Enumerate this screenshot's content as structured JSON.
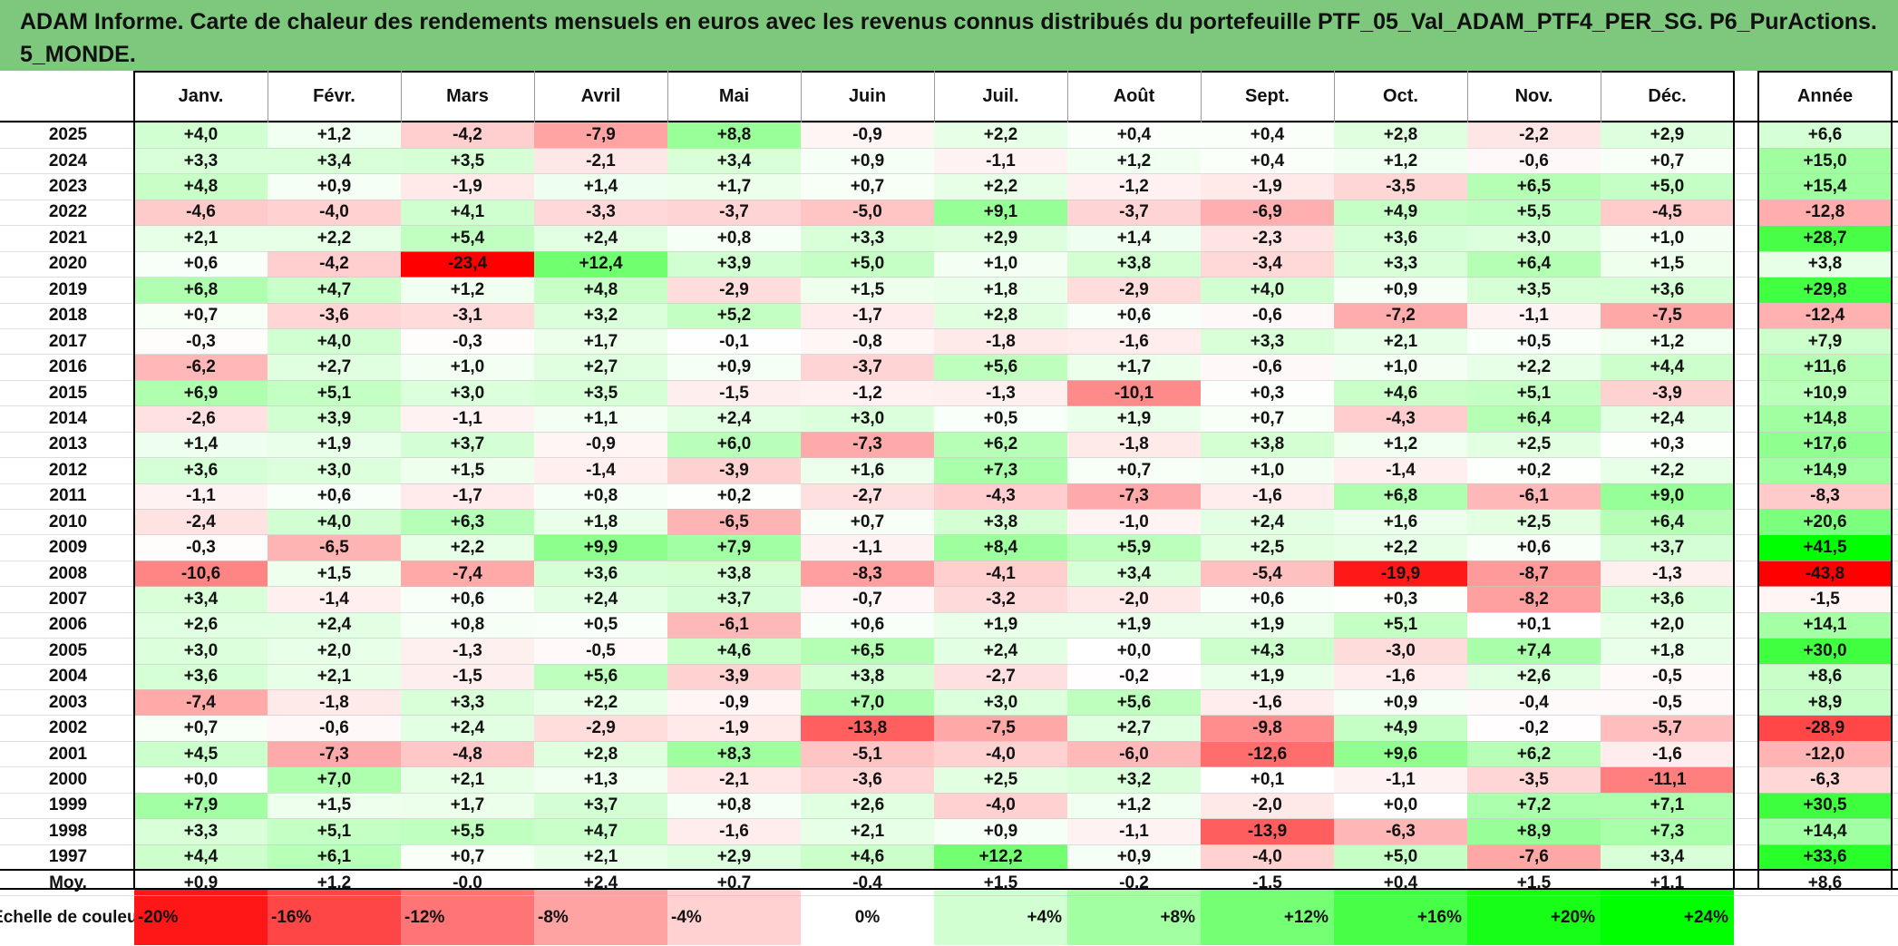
{
  "title": "ADAM Informe. Carte de chaleur des rendements mensuels en euros avec les revenus connus distribués du portefeuille PTF_05_Val_ADAM_PTF4_PER_SG. P6_PurActions. 5_MONDE.",
  "colors": {
    "title_bg": "#7ec87e",
    "negative_max": "#ff0000",
    "positive_max": "#00ff00",
    "neutral": "#ffffff"
  },
  "chart_data": {
    "type": "heatmap",
    "title": "ADAM Informe. Carte de chaleur des rendements mensuels en euros avec les revenus connus distribués du portefeuille PTF_05_Val_ADAM_PTF4_PER_SG. P6_PurActions. 5_MONDE.",
    "months": [
      "Janv.",
      "Févr.",
      "Mars",
      "Avril",
      "Mai",
      "Juin",
      "Juil.",
      "Août",
      "Sept.",
      "Oct.",
      "Nov.",
      "Déc."
    ],
    "annual_label": "Année",
    "years": [
      "2025",
      "2024",
      "2023",
      "2022",
      "2021",
      "2020",
      "2019",
      "2018",
      "2017",
      "2016",
      "2015",
      "2014",
      "2013",
      "2012",
      "2011",
      "2010",
      "2009",
      "2008",
      "2007",
      "2006",
      "2005",
      "2004",
      "2003",
      "2002",
      "2001",
      "2000",
      "1999",
      "1998",
      "1997"
    ],
    "values": [
      [
        "+4,0",
        "+1,2",
        "-4,2",
        "-7,9",
        "+8,8",
        "-0,9",
        "+2,2",
        "+0,4",
        "+0,4",
        "+2,8",
        "-2,2",
        "+2,9"
      ],
      [
        "+3,3",
        "+3,4",
        "+3,5",
        "-2,1",
        "+3,4",
        "+0,9",
        "-1,1",
        "+1,2",
        "+0,4",
        "+1,2",
        "-0,6",
        "+0,7"
      ],
      [
        "+4,8",
        "+0,9",
        "-1,9",
        "+1,4",
        "+1,7",
        "+0,7",
        "+2,2",
        "-1,2",
        "-1,9",
        "-3,5",
        "+6,5",
        "+5,0"
      ],
      [
        "-4,6",
        "-4,0",
        "+4,1",
        "-3,3",
        "-3,7",
        "-5,0",
        "+9,1",
        "-3,7",
        "-6,9",
        "+4,9",
        "+5,5",
        "-4,5"
      ],
      [
        "+2,1",
        "+2,2",
        "+5,4",
        "+2,4",
        "+0,8",
        "+3,3",
        "+2,9",
        "+1,4",
        "-2,3",
        "+3,6",
        "+3,0",
        "+1,0"
      ],
      [
        "+0,6",
        "-4,2",
        "-23,4",
        "+12,4",
        "+3,9",
        "+5,0",
        "+1,0",
        "+3,8",
        "-3,4",
        "+3,3",
        "+6,4",
        "+1,5"
      ],
      [
        "+6,8",
        "+4,7",
        "+1,2",
        "+4,8",
        "-2,9",
        "+1,5",
        "+1,8",
        "-2,9",
        "+4,0",
        "+0,9",
        "+3,5",
        "+3,6"
      ],
      [
        "+0,7",
        "-3,6",
        "-3,1",
        "+3,2",
        "+5,2",
        "-1,7",
        "+2,8",
        "+0,6",
        "-0,6",
        "-7,2",
        "-1,1",
        "-7,5"
      ],
      [
        "-0,3",
        "+4,0",
        "-0,3",
        "+1,7",
        "-0,1",
        "-0,8",
        "-1,8",
        "-1,6",
        "+3,3",
        "+2,1",
        "+0,5",
        "+1,2"
      ],
      [
        "-6,2",
        "+2,7",
        "+1,0",
        "+2,7",
        "+0,9",
        "-3,7",
        "+5,6",
        "+1,7",
        "-0,6",
        "+1,0",
        "+2,2",
        "+4,4"
      ],
      [
        "+6,9",
        "+5,1",
        "+3,0",
        "+3,5",
        "-1,5",
        "-1,2",
        "-1,3",
        "-10,1",
        "+0,3",
        "+4,6",
        "+5,1",
        "-3,9"
      ],
      [
        "-2,6",
        "+3,9",
        "-1,1",
        "+1,1",
        "+2,4",
        "+3,0",
        "+0,5",
        "+1,9",
        "+0,7",
        "-4,3",
        "+6,4",
        "+2,4"
      ],
      [
        "+1,4",
        "+1,9",
        "+3,7",
        "-0,9",
        "+6,0",
        "-7,3",
        "+6,2",
        "-1,8",
        "+3,8",
        "+1,2",
        "+2,5",
        "+0,3"
      ],
      [
        "+3,6",
        "+3,0",
        "+1,5",
        "-1,4",
        "-3,9",
        "+1,6",
        "+7,3",
        "+0,7",
        "+1,0",
        "-1,4",
        "+0,2",
        "+2,2"
      ],
      [
        "-1,1",
        "+0,6",
        "-1,7",
        "+0,8",
        "+0,2",
        "-2,7",
        "-4,3",
        "-7,3",
        "-1,6",
        "+6,8",
        "-6,1",
        "+9,0"
      ],
      [
        "-2,4",
        "+4,0",
        "+6,3",
        "+1,8",
        "-6,5",
        "+0,7",
        "+3,8",
        "-1,0",
        "+2,4",
        "+1,6",
        "+2,5",
        "+6,4"
      ],
      [
        "-0,3",
        "-6,5",
        "+2,2",
        "+9,9",
        "+7,9",
        "-1,1",
        "+8,4",
        "+5,9",
        "+2,5",
        "+2,2",
        "+0,6",
        "+3,7"
      ],
      [
        "-10,6",
        "+1,5",
        "-7,4",
        "+3,6",
        "+3,8",
        "-8,3",
        "-4,1",
        "+3,4",
        "-5,4",
        "-19,9",
        "-8,7",
        "-1,3"
      ],
      [
        "+3,4",
        "-1,4",
        "+0,6",
        "+2,4",
        "+3,7",
        "-0,7",
        "-3,2",
        "-2,0",
        "+0,6",
        "+0,3",
        "-8,2",
        "+3,6"
      ],
      [
        "+2,6",
        "+2,4",
        "+0,8",
        "+0,5",
        "-6,1",
        "+0,6",
        "+1,9",
        "+1,9",
        "+1,9",
        "+5,1",
        "+0,1",
        "+2,0"
      ],
      [
        "+3,0",
        "+2,0",
        "-1,3",
        "-0,5",
        "+4,6",
        "+6,5",
        "+2,4",
        "+0,0",
        "+4,3",
        "-3,0",
        "+7,4",
        "+1,8"
      ],
      [
        "+3,6",
        "+2,1",
        "-1,5",
        "+5,6",
        "-3,9",
        "+3,8",
        "-2,7",
        "-0,2",
        "+1,9",
        "-1,6",
        "+2,6",
        "-0,5"
      ],
      [
        "-7,4",
        "-1,8",
        "+3,3",
        "+2,2",
        "-0,9",
        "+7,0",
        "+3,0",
        "+5,6",
        "-1,6",
        "+0,9",
        "-0,4",
        "-0,5"
      ],
      [
        "+0,7",
        "-0,6",
        "+2,4",
        "-2,9",
        "-1,9",
        "-13,8",
        "-7,5",
        "+2,7",
        "-9,8",
        "+4,9",
        "-0,2",
        "-5,7"
      ],
      [
        "+4,5",
        "-7,3",
        "-4,8",
        "+2,8",
        "+8,3",
        "-5,1",
        "-4,0",
        "-6,0",
        "-12,6",
        "+9,6",
        "+6,2",
        "-1,6"
      ],
      [
        "+0,0",
        "+7,0",
        "+2,1",
        "+1,3",
        "-2,1",
        "-3,6",
        "+2,5",
        "+3,2",
        "+0,1",
        "-1,1",
        "-3,5",
        "-11,1"
      ],
      [
        "+7,9",
        "+1,5",
        "+1,7",
        "+3,7",
        "+0,8",
        "+2,6",
        "-4,0",
        "+1,2",
        "-2,0",
        "+0,0",
        "+7,2",
        "+7,1"
      ],
      [
        "+3,3",
        "+5,1",
        "+5,5",
        "+4,7",
        "-1,6",
        "+2,1",
        "+0,9",
        "-1,1",
        "-13,9",
        "-6,3",
        "+8,9",
        "+7,3"
      ],
      [
        "+4,4",
        "+6,1",
        "+0,7",
        "+2,1",
        "+2,9",
        "+4,6",
        "+12,2",
        "+0,9",
        "-4,0",
        "+5,0",
        "-7,6",
        "+3,4"
      ]
    ],
    "annual": [
      "+6,6",
      "+15,0",
      "+15,4",
      "-12,8",
      "+28,7",
      "+3,8",
      "+29,8",
      "-12,4",
      "+7,9",
      "+11,6",
      "+10,9",
      "+14,8",
      "+17,6",
      "+14,9",
      "-8,3",
      "+20,6",
      "+41,5",
      "-43,8",
      "-1,5",
      "+14,1",
      "+30,0",
      "+8,6",
      "+8,9",
      "-28,9",
      "-12,0",
      "-6,3",
      "+30,5",
      "+14,4",
      "+33,6"
    ],
    "average_label": "Moy.",
    "average": [
      "+0,9",
      "+1,2",
      "-0,0",
      "+2,4",
      "+0,7",
      "-0,4",
      "+1,5",
      "-0,2",
      "-1,5",
      "+0,4",
      "+1,5",
      "+1,1"
    ],
    "average_annual": "+8,6",
    "scale_label": "Echelle de couleur",
    "scale": [
      "-20%",
      "-16%",
      "-12%",
      "-8%",
      "-4%",
      "0%",
      "+4%",
      "+8%",
      "+12%",
      "+16%",
      "+20%",
      "+24%"
    ],
    "scale_values": [
      -20,
      -16,
      -12,
      -8,
      -4,
      0,
      4,
      8,
      12,
      16,
      20,
      24
    ]
  }
}
